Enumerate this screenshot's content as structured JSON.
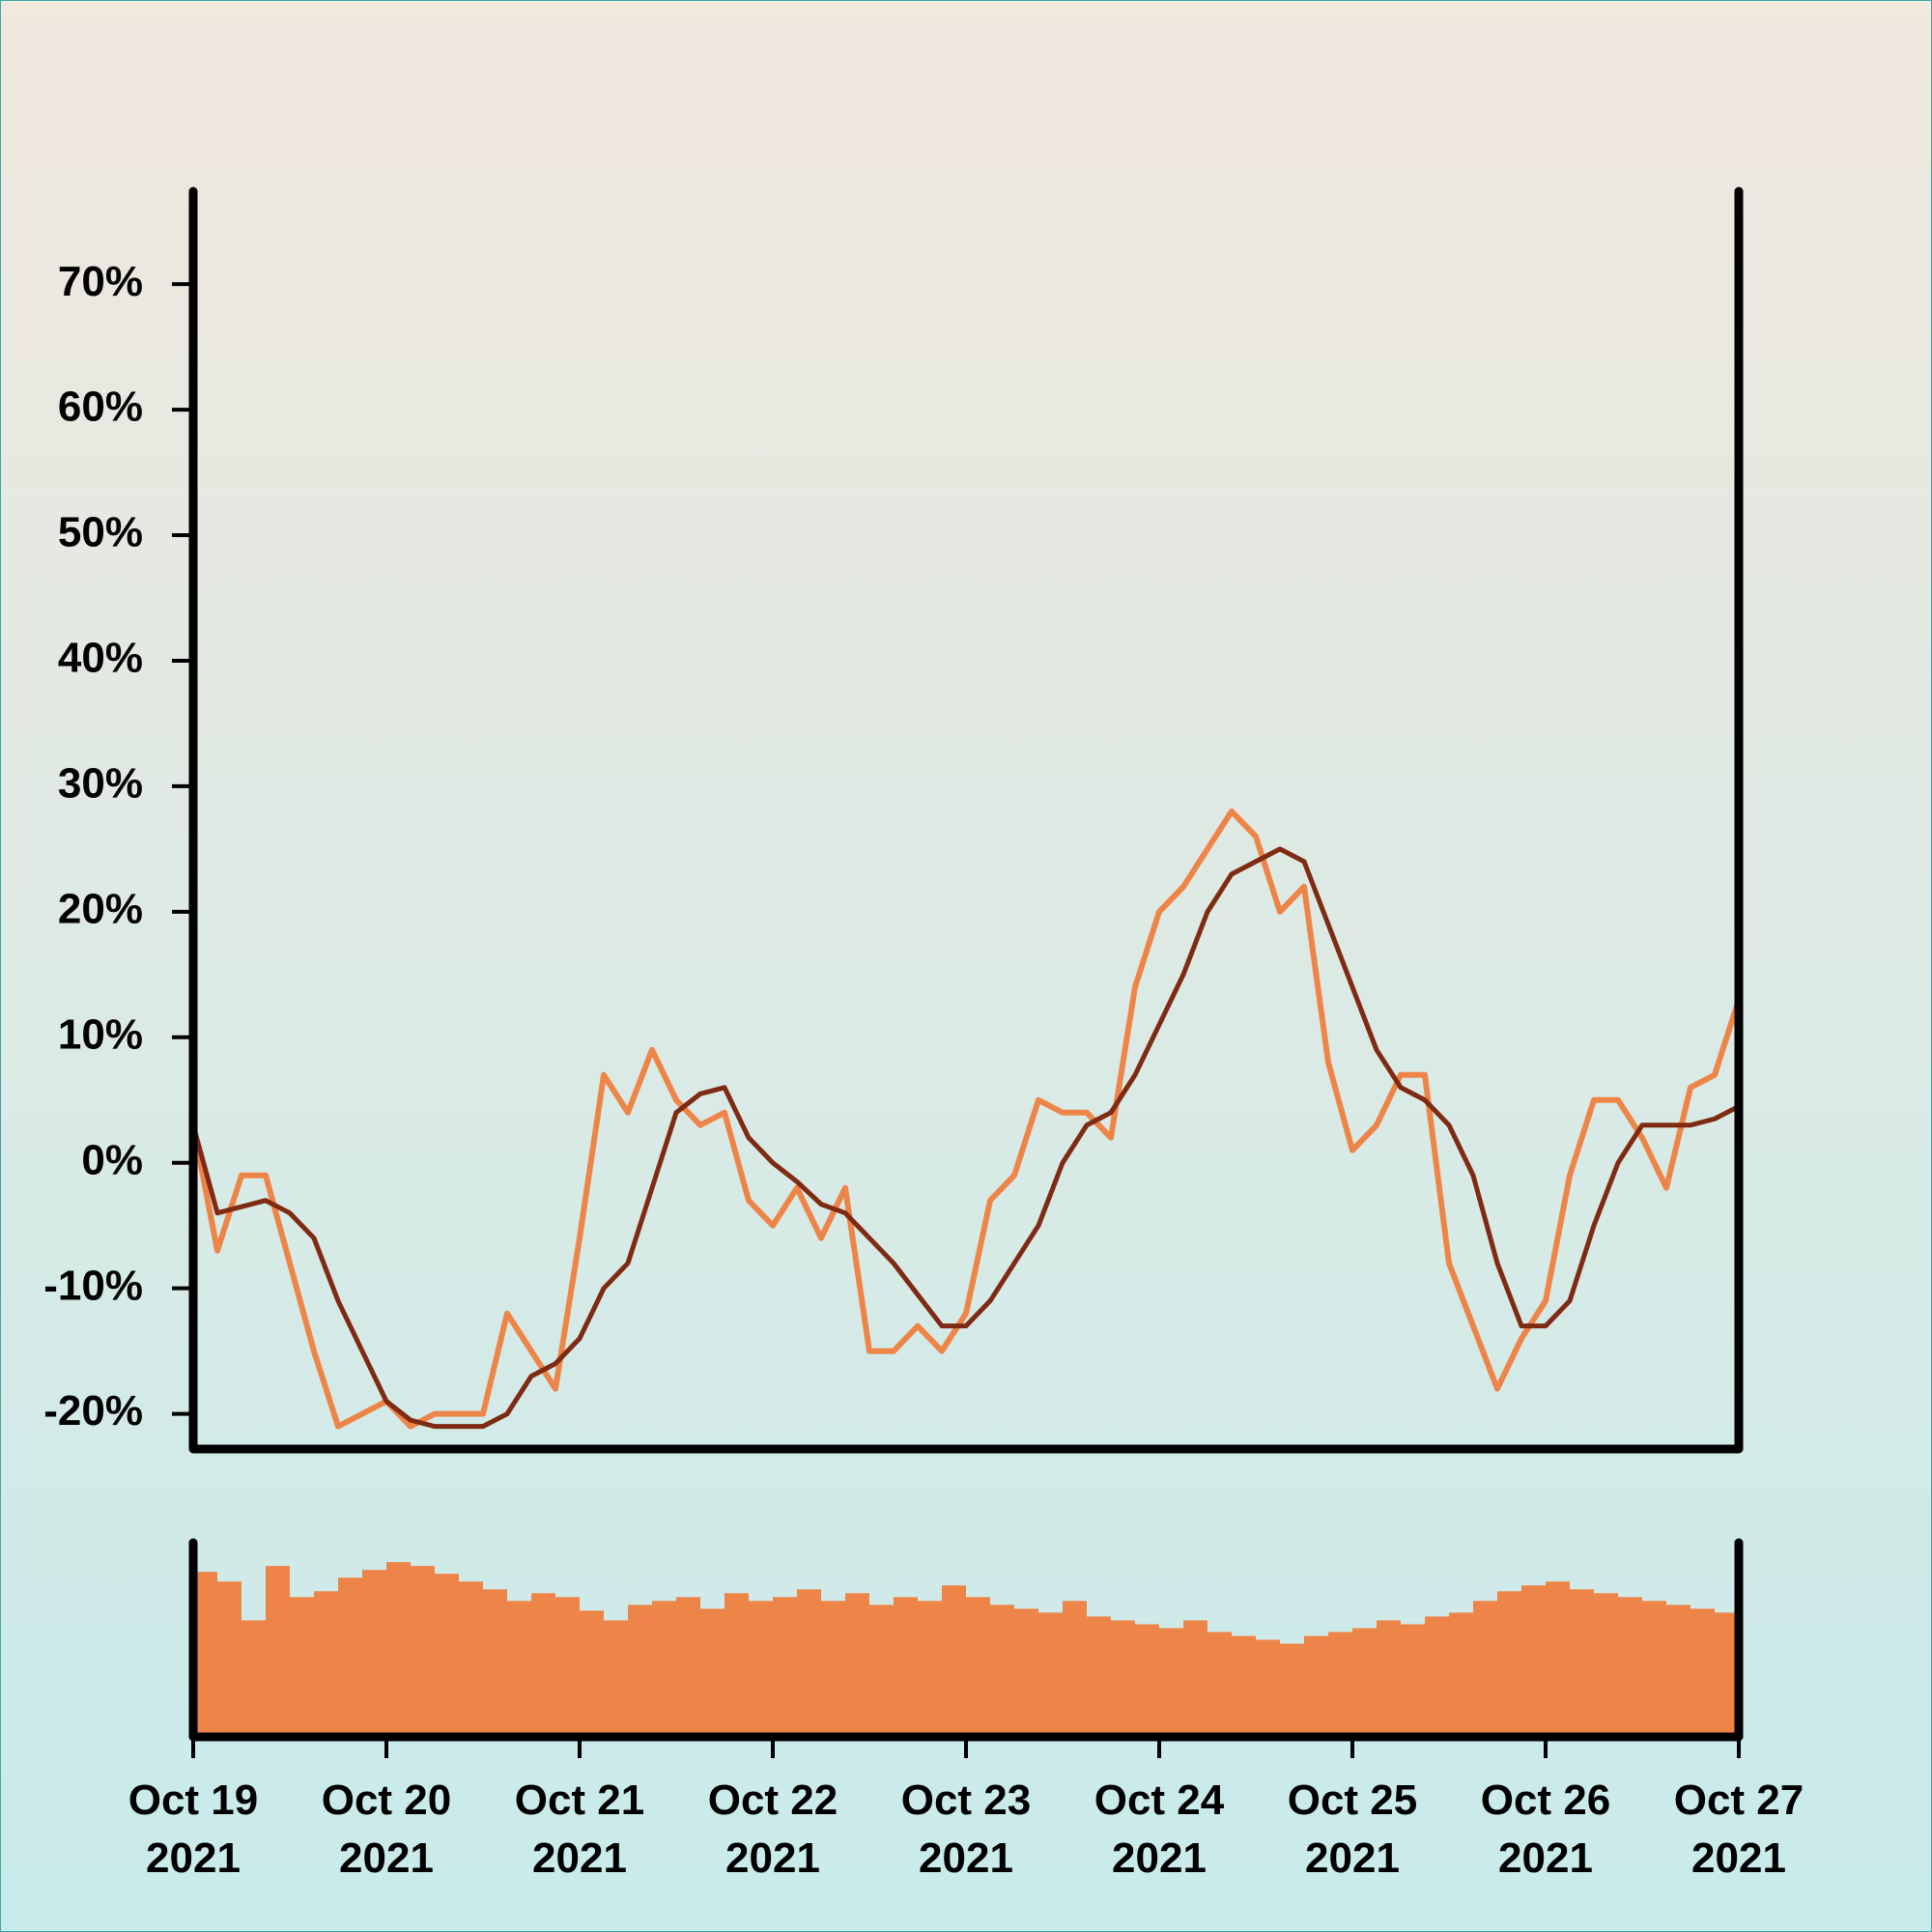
{
  "chart_data": [
    {
      "type": "line",
      "x": [
        "2021-10-19 00:00",
        "2021-10-19 03:00",
        "2021-10-19 06:00",
        "2021-10-19 09:00",
        "2021-10-19 12:00",
        "2021-10-19 15:00",
        "2021-10-19 18:00",
        "2021-10-19 21:00",
        "2021-10-20 00:00",
        "2021-10-20 03:00",
        "2021-10-20 06:00",
        "2021-10-20 09:00",
        "2021-10-20 12:00",
        "2021-10-20 15:00",
        "2021-10-20 18:00",
        "2021-10-20 21:00",
        "2021-10-21 00:00",
        "2021-10-21 03:00",
        "2021-10-21 06:00",
        "2021-10-21 09:00",
        "2021-10-21 12:00",
        "2021-10-21 15:00",
        "2021-10-21 18:00",
        "2021-10-21 21:00",
        "2021-10-22 00:00",
        "2021-10-22 03:00",
        "2021-10-22 06:00",
        "2021-10-22 09:00",
        "2021-10-22 12:00",
        "2021-10-22 15:00",
        "2021-10-22 18:00",
        "2021-10-22 21:00",
        "2021-10-23 00:00",
        "2021-10-23 03:00",
        "2021-10-23 06:00",
        "2021-10-23 09:00",
        "2021-10-23 12:00",
        "2021-10-23 15:00",
        "2021-10-23 18:00",
        "2021-10-23 21:00",
        "2021-10-24 00:00",
        "2021-10-24 03:00",
        "2021-10-24 06:00",
        "2021-10-24 09:00",
        "2021-10-24 12:00",
        "2021-10-24 15:00",
        "2021-10-24 18:00",
        "2021-10-24 21:00",
        "2021-10-25 00:00",
        "2021-10-25 03:00",
        "2021-10-25 06:00",
        "2021-10-25 09:00",
        "2021-10-25 12:00",
        "2021-10-25 15:00",
        "2021-10-25 18:00",
        "2021-10-25 21:00",
        "2021-10-26 00:00",
        "2021-10-26 03:00",
        "2021-10-26 06:00",
        "2021-10-26 09:00",
        "2021-10-26 12:00",
        "2021-10-26 15:00",
        "2021-10-26 18:00",
        "2021-10-26 21:00",
        "2021-10-27 00:00"
      ],
      "series": [
        {
          "color": "#ee8548",
          "values": [
            3,
            -7,
            -1,
            -1,
            -8,
            -15,
            -21,
            -20,
            -19,
            -21,
            -20,
            -20,
            -20,
            -12,
            -15,
            -18,
            -6,
            7,
            4,
            9,
            5,
            3,
            4,
            -3,
            -5,
            -2,
            -6,
            -2,
            -15,
            -15,
            -13,
            -15,
            -12,
            -3,
            -1,
            5,
            4,
            4,
            2,
            14,
            20,
            22,
            25,
            28,
            26,
            20,
            22,
            8,
            1,
            3,
            7,
            7,
            -8,
            -13,
            -18,
            -14,
            -11,
            -1,
            5,
            5,
            2,
            -2,
            6,
            7,
            13
          ]
        },
        {
          "color": "#7f2a12",
          "values": [
            3,
            -4,
            -3.5,
            -3,
            -4,
            -6,
            -11,
            -15,
            -19,
            -20.5,
            -21,
            -21,
            -21,
            -20,
            -17,
            -16,
            -14,
            -10,
            -8,
            -2,
            4,
            5.5,
            6,
            2,
            0,
            -1.5,
            -3.3,
            -4,
            -6,
            -8,
            -10.5,
            -13,
            -13,
            -11,
            -8,
            -5,
            0,
            3,
            4,
            7,
            11,
            15,
            20,
            23,
            24,
            25,
            24,
            19,
            14,
            9,
            6,
            5,
            3,
            -1,
            -8,
            -13,
            -13,
            -11,
            -5,
            0,
            3,
            3,
            3,
            3.5,
            4.5
          ]
        }
      ],
      "xlim": [
        "2021-10-19 00:00",
        "2021-10-27 00:00"
      ],
      "ylim": [
        -22.8,
        77.4
      ],
      "yticks": [
        {
          "value": -20,
          "label": "-20%"
        },
        {
          "value": -10,
          "label": "-10%"
        },
        {
          "value": 0,
          "label": "0%"
        },
        {
          "value": 10,
          "label": "10%"
        },
        {
          "value": 20,
          "label": "20%"
        },
        {
          "value": 30,
          "label": "30%"
        },
        {
          "value": 40,
          "label": "40%"
        },
        {
          "value": 50,
          "label": "50%"
        },
        {
          "value": 60,
          "label": "60%"
        },
        {
          "value": 70,
          "label": "70%"
        }
      ]
    },
    {
      "type": "bar",
      "x": [
        "2021-10-19 00:00",
        "2021-10-19 03:00",
        "2021-10-19 06:00",
        "2021-10-19 09:00",
        "2021-10-19 12:00",
        "2021-10-19 15:00",
        "2021-10-19 18:00",
        "2021-10-19 21:00",
        "2021-10-20 00:00",
        "2021-10-20 03:00",
        "2021-10-20 06:00",
        "2021-10-20 09:00",
        "2021-10-20 12:00",
        "2021-10-20 15:00",
        "2021-10-20 18:00",
        "2021-10-20 21:00",
        "2021-10-21 00:00",
        "2021-10-21 03:00",
        "2021-10-21 06:00",
        "2021-10-21 09:00",
        "2021-10-21 12:00",
        "2021-10-21 15:00",
        "2021-10-21 18:00",
        "2021-10-21 21:00",
        "2021-10-22 00:00",
        "2021-10-22 03:00",
        "2021-10-22 06:00",
        "2021-10-22 09:00",
        "2021-10-22 12:00",
        "2021-10-22 15:00",
        "2021-10-22 18:00",
        "2021-10-22 21:00",
        "2021-10-23 00:00",
        "2021-10-23 03:00",
        "2021-10-23 06:00",
        "2021-10-23 09:00",
        "2021-10-23 12:00",
        "2021-10-23 15:00",
        "2021-10-23 18:00",
        "2021-10-23 21:00",
        "2021-10-24 00:00",
        "2021-10-24 03:00",
        "2021-10-24 06:00",
        "2021-10-24 09:00",
        "2021-10-24 12:00",
        "2021-10-24 15:00",
        "2021-10-24 18:00",
        "2021-10-24 21:00",
        "2021-10-25 00:00",
        "2021-10-25 03:00",
        "2021-10-25 06:00",
        "2021-10-25 09:00",
        "2021-10-25 12:00",
        "2021-10-25 15:00",
        "2021-10-25 18:00",
        "2021-10-25 21:00",
        "2021-10-26 00:00",
        "2021-10-26 03:00",
        "2021-10-26 06:00",
        "2021-10-26 09:00",
        "2021-10-26 12:00",
        "2021-10-26 15:00",
        "2021-10-26 18:00",
        "2021-10-26 21:00"
      ],
      "values": [
        85,
        80,
        60,
        88,
        72,
        75,
        82,
        86,
        90,
        88,
        84,
        80,
        76,
        70,
        74,
        72,
        65,
        60,
        68,
        70,
        72,
        66,
        74,
        70,
        72,
        76,
        70,
        74,
        68,
        72,
        70,
        78,
        72,
        68,
        66,
        64,
        70,
        62,
        60,
        58,
        56,
        60,
        54,
        52,
        50,
        48,
        52,
        54,
        56,
        60,
        58,
        62,
        64,
        70,
        75,
        78,
        80,
        76,
        74,
        72,
        70,
        68,
        66,
        64
      ],
      "color": "#ee8548",
      "xlim": [
        "2021-10-19 00:00",
        "2021-10-27 00:00"
      ],
      "ylim": [
        0,
        100
      ],
      "xticks": [
        {
          "value": "2021-10-19 00:00",
          "label": "Oct 19 2021"
        },
        {
          "value": "2021-10-20 00:00",
          "label": "Oct 20 2021"
        },
        {
          "value": "2021-10-21 00:00",
          "label": "Oct 21 2021"
        },
        {
          "value": "2021-10-22 00:00",
          "label": "Oct 22 2021"
        },
        {
          "value": "2021-10-23 00:00",
          "label": "Oct 23 2021"
        },
        {
          "value": "2021-10-24 00:00",
          "label": "Oct 24 2021"
        },
        {
          "value": "2021-10-25 00:00",
          "label": "Oct 25 2021"
        },
        {
          "value": "2021-10-26 00:00",
          "label": "Oct 26 2021"
        },
        {
          "value": "2021-10-27 00:00",
          "label": "Oct 27 2021"
        }
      ]
    }
  ]
}
